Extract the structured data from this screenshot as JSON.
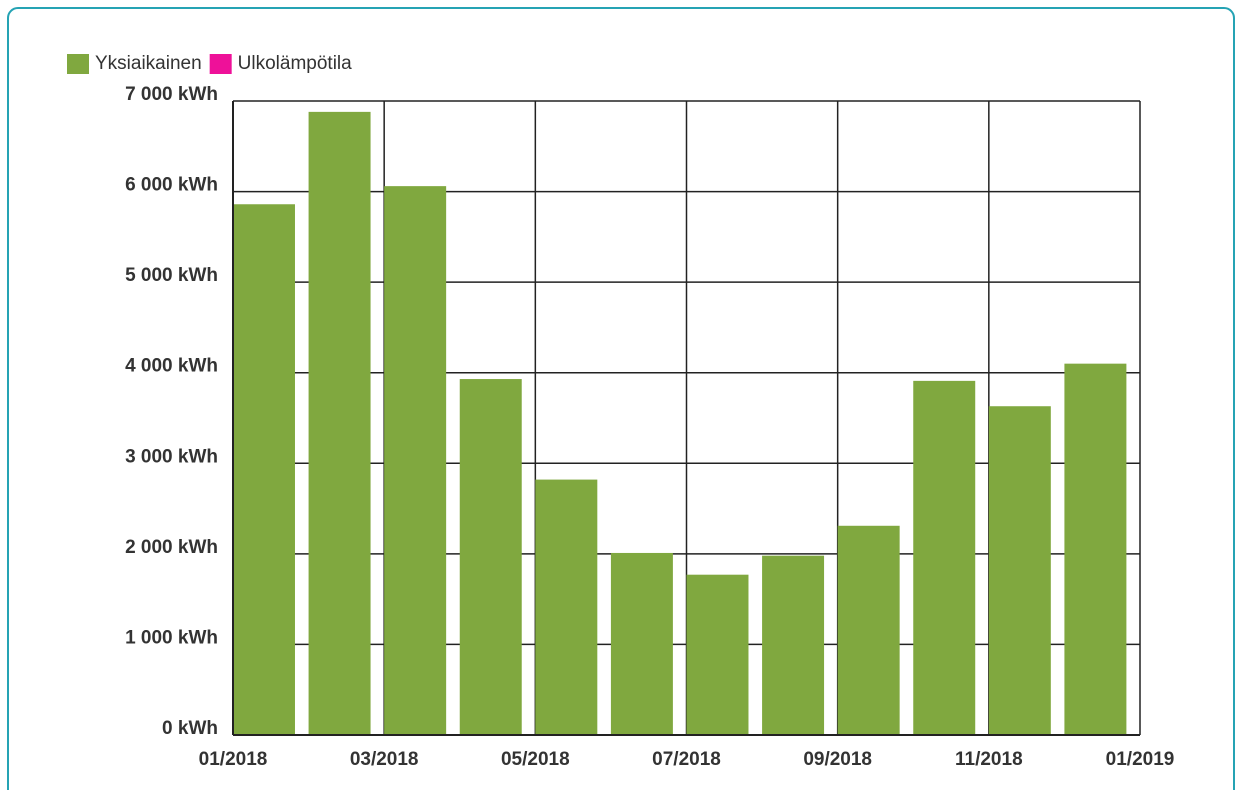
{
  "chart_data": {
    "type": "bar",
    "x": [
      "01/2018",
      "02/2018",
      "03/2018",
      "04/2018",
      "05/2018",
      "06/2018",
      "07/2018",
      "08/2018",
      "09/2018",
      "10/2018",
      "11/2018",
      "12/2018"
    ],
    "series": [
      {
        "name": "Yksiaikainen",
        "color": "#80a83f",
        "values": [
          5860,
          6880,
          6060,
          3930,
          2820,
          2010,
          1770,
          1980,
          2310,
          3910,
          3630,
          4100
        ]
      },
      {
        "name": "Ulkolämpötila",
        "color": "#ee1199",
        "values": [
          null,
          null,
          null,
          null,
          null,
          null,
          null,
          null,
          null,
          null,
          null,
          null
        ]
      }
    ],
    "xlim": [
      "01/2018",
      "01/2019"
    ],
    "xticks": [
      "01/2018",
      "03/2018",
      "05/2018",
      "07/2018",
      "09/2018",
      "11/2018",
      "01/2019"
    ],
    "ylim": [
      0,
      7000
    ],
    "yticks": [
      {
        "value": 0,
        "label": "0 kWh"
      },
      {
        "value": 1000,
        "label": "1 000 kWh"
      },
      {
        "value": 2000,
        "label": "2 000 kWh"
      },
      {
        "value": 3000,
        "label": "3 000 kWh"
      },
      {
        "value": 4000,
        "label": "4 000 kWh"
      },
      {
        "value": 5000,
        "label": "5 000 kWh"
      },
      {
        "value": 6000,
        "label": "6 000 kWh"
      },
      {
        "value": 7000,
        "label": "7 000 kWh"
      }
    ],
    "grid": true,
    "legend": "top-left"
  }
}
